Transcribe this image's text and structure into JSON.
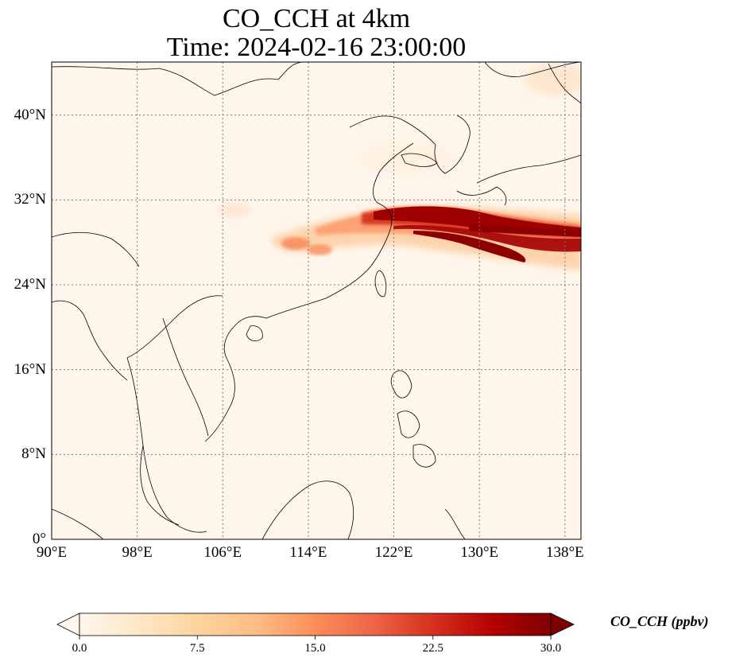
{
  "title": {
    "line1": "CO_CCH at 4km",
    "line2": "Time: 2024-02-16 23:00:00"
  },
  "map": {
    "extent": {
      "lon_min": 90,
      "lon_max": 139.5,
      "lat_min": 0,
      "lat_max": 45
    },
    "lon_ticks": [
      {
        "value": 90,
        "label": "90°E"
      },
      {
        "value": 98,
        "label": "98°E"
      },
      {
        "value": 106,
        "label": "106°E"
      },
      {
        "value": 114,
        "label": "114°E"
      },
      {
        "value": 122,
        "label": "122°E"
      },
      {
        "value": 130,
        "label": "130°E"
      },
      {
        "value": 138,
        "label": "138°E"
      }
    ],
    "lat_ticks": [
      {
        "value": 0,
        "label": "0°"
      },
      {
        "value": 8,
        "label": "8°N"
      },
      {
        "value": 16,
        "label": "16°N"
      },
      {
        "value": 24,
        "label": "24°N"
      },
      {
        "value": 32,
        "label": "32°N"
      },
      {
        "value": 40,
        "label": "40°N"
      }
    ],
    "gridlines": true,
    "background_color": "#fff5ea",
    "plume_color": "#8b0000"
  },
  "colorbar": {
    "label": "CO_CCH (ppbv)",
    "min": 0.0,
    "max": 30.0,
    "extend": "both",
    "colormap": "OrRd",
    "ticks": [
      {
        "value": 0.0,
        "label": "0.0"
      },
      {
        "value": 7.5,
        "label": "7.5"
      },
      {
        "value": 15.0,
        "label": "15.0"
      },
      {
        "value": 22.5,
        "label": "22.5"
      },
      {
        "value": 30.0,
        "label": "30.0"
      }
    ]
  }
}
